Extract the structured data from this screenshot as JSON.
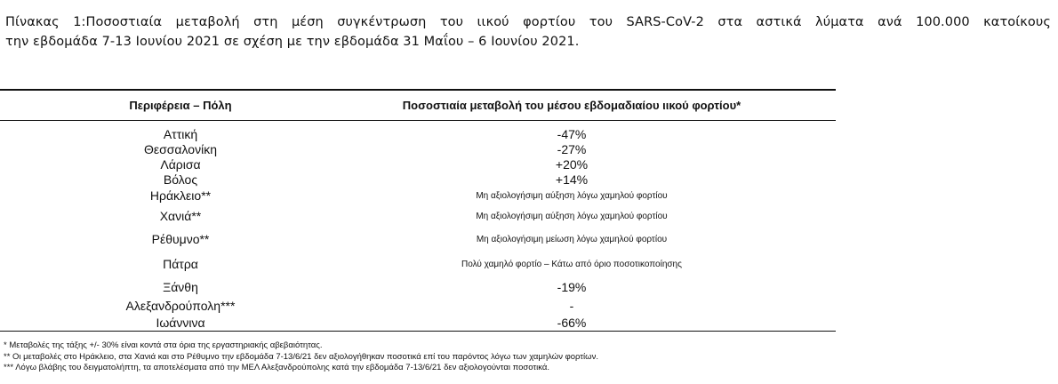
{
  "caption": {
    "line1": "Πίνακας 1:Ποσοστιαία μεταβολή στη μέση συγκέντρωση του ιικού φορτίου του SARS-CoV-2 στα αστικά λύματα ανά 100.000 κατοίκους",
    "line2": "την εβδομάδα 7-13 Ιουνίου 2021 σε σχέση με την εβδομάδα 31 Μαΐου – 6 Ιουνίου 2021."
  },
  "table": {
    "headers": {
      "region": "Περιφέρεια – Πόλη",
      "change": "Ποσοστιαία μεταβολή του μέσου εβδομαδιαίου ιικού φορτίου*"
    },
    "rows": [
      {
        "region": "Αττική",
        "change": "-47%"
      },
      {
        "region": "Θεσσαλονίκη",
        "change": "-27%"
      },
      {
        "region": "Λάρισα",
        "change": "+20%"
      },
      {
        "region": "Βόλος",
        "change": "+14%"
      },
      {
        "region": "Ηράκλειο**",
        "change": "Μη αξιολογήσιμη αύξηση λόγω χαμηλού φορτίου"
      },
      {
        "region": "Χανιά**",
        "change": "Μη αξιολογήσιμη αύξηση λόγω χαμηλού φορτίου"
      },
      {
        "region": "Ρέθυμνο**",
        "change": "Μη αξιολογήσιμη μείωση λόγω χαμηλού φορτίου"
      },
      {
        "region": "Πάτρα",
        "change": "Πολύ χαμηλό φορτίο – Κάτω από όριο ποσοτικοποίησης"
      },
      {
        "region": "Ξάνθη",
        "change": "-19%"
      },
      {
        "region": "Αλεξανδρούπολη***",
        "change": "-"
      },
      {
        "region": "Ιωάννινα",
        "change": "-66%"
      }
    ]
  },
  "notes": [
    "* Μεταβολές της τάξης +/- 30% είναι κοντά στα όρια της εργαστηριακής αβεβαιότητας.",
    "** Οι μεταβολές στο Ηράκλειο, στα Χανιά και στο Ρέθυμνο την εβδομάδα 7-13/6/21 δεν αξιολογήθηκαν ποσοτικά επί του παρόντος λόγω των χαμηλών φορτίων.",
    "*** Λόγω βλάβης του δειγματολήπτη, τα αποτελέσματα από την ΜΕΛ Αλεξανδρούπολης κατά την εβδομάδα 7-13/6/21 δεν αξιολογούνται ποσοτικά."
  ]
}
